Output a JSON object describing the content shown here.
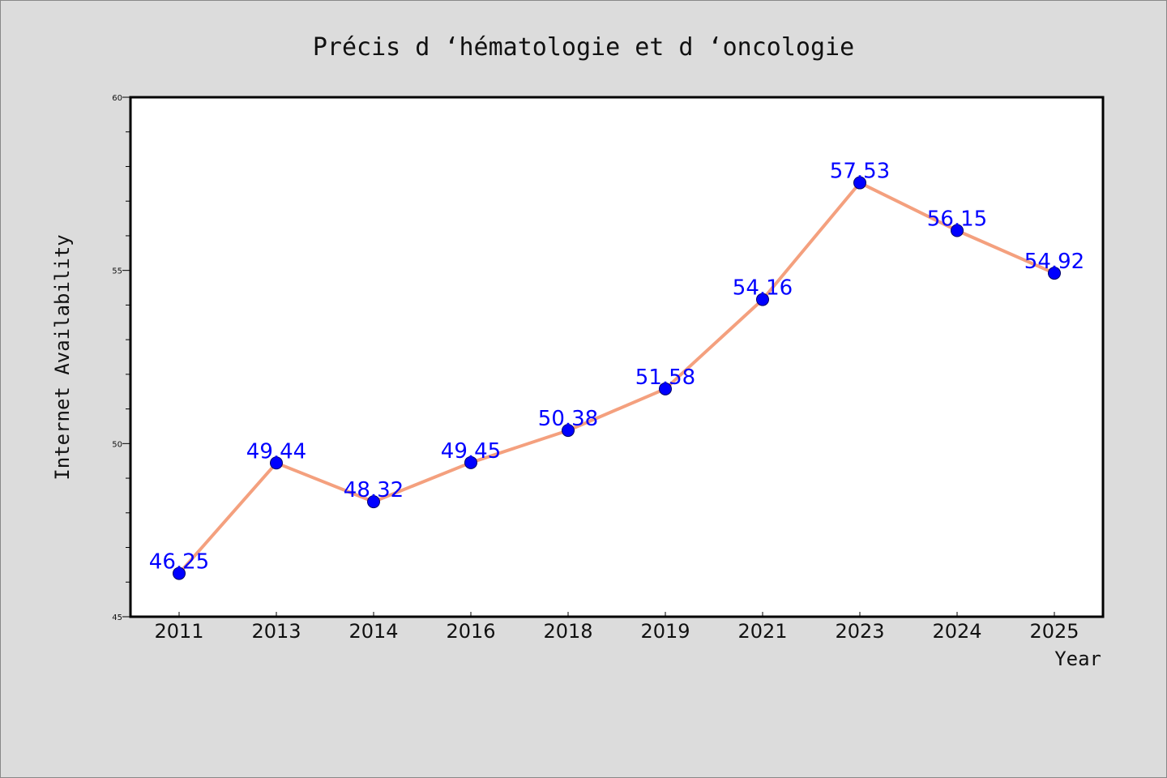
{
  "chart_data": {
    "type": "line",
    "title": "Précis d ‘hématologie et d ‘oncologie",
    "xlabel": "Year",
    "ylabel": "Internet Availability",
    "categories": [
      "2011",
      "2013",
      "2014",
      "2016",
      "2018",
      "2019",
      "2021",
      "2023",
      "2024",
      "2025"
    ],
    "series": [
      {
        "values": [
          46.25,
          49.44,
          48.32,
          49.45,
          50.38,
          51.58,
          54.16,
          57.53,
          56.15,
          54.92
        ],
        "labels": [
          "46.25",
          "49.44",
          "48.32",
          "49.45",
          "50.38",
          "51.58",
          "54.16",
          "57.53",
          "56.15",
          "54.92"
        ],
        "line_color": "#f4a07e",
        "marker_color": "#0000ff"
      }
    ],
    "ylim": [
      45,
      60
    ],
    "yticks": [
      "45",
      "50",
      "55",
      "60"
    ],
    "grid": false,
    "legend": "none",
    "colors": {
      "background": "#dcdcdc",
      "plot_background": "#ffffff",
      "data_label": "#0000ff"
    }
  }
}
